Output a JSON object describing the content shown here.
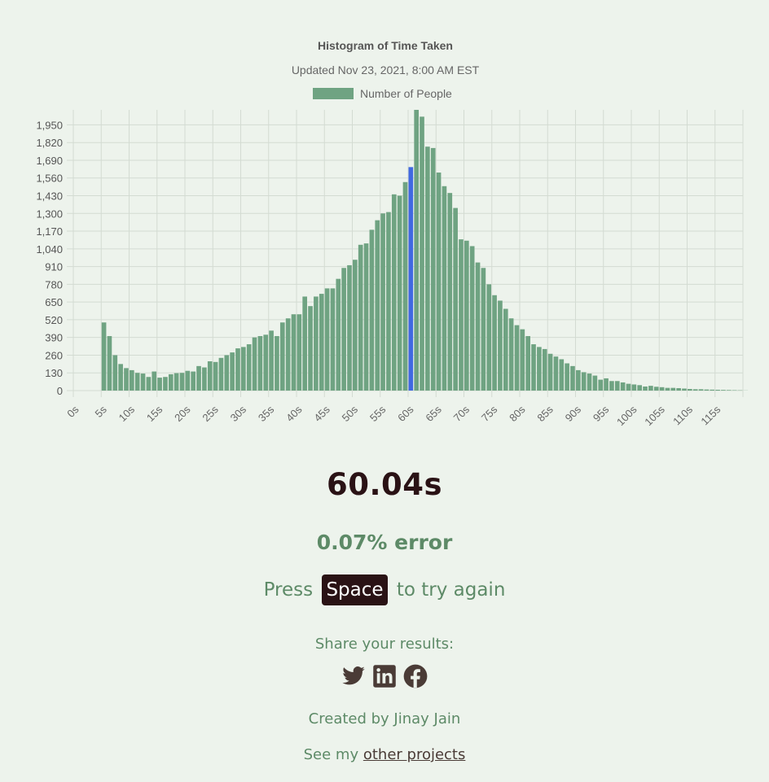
{
  "chart_data": {
    "type": "bar",
    "title": "Histogram of Time Taken",
    "subtitle": "Updated Nov 23, 2021, 8:00 AM EST",
    "legend": "Number of People",
    "legend_position": "top-center",
    "bin_width_s": 1,
    "x_start_s": 0,
    "x_tick_every": 5,
    "x_tick_labels": [
      "0s",
      "5s",
      "10s",
      "15s",
      "20s",
      "25s",
      "30s",
      "35s",
      "40s",
      "45s",
      "50s",
      "55s",
      "60s",
      "65s",
      "70s",
      "75s",
      "80s",
      "85s",
      "90s",
      "95s",
      "100s",
      "105s",
      "110s",
      "115s"
    ],
    "y_ticks": [
      0,
      130,
      260,
      390,
      520,
      650,
      780,
      910,
      1040,
      1170,
      1300,
      1430,
      1560,
      1690,
      1820,
      1950
    ],
    "y_tick_labels": [
      "0",
      "130",
      "260",
      "390",
      "520",
      "650",
      "780",
      "910",
      "1,040",
      "1,170",
      "1,300",
      "1,430",
      "1,560",
      "1,690",
      "1,820",
      "1,950"
    ],
    "ylim": [
      0,
      2060
    ],
    "highlight_bin": 60,
    "bar_color": "#6fa382",
    "highlight_color": "#4169e1",
    "values": [
      0,
      0,
      0,
      0,
      0,
      500,
      400,
      260,
      195,
      165,
      150,
      130,
      125,
      100,
      140,
      95,
      100,
      120,
      128,
      130,
      145,
      140,
      180,
      170,
      215,
      210,
      240,
      260,
      280,
      310,
      320,
      340,
      390,
      400,
      410,
      440,
      400,
      500,
      530,
      560,
      560,
      690,
      620,
      690,
      710,
      750,
      750,
      820,
      900,
      920,
      960,
      1070,
      1080,
      1180,
      1250,
      1300,
      1310,
      1440,
      1430,
      1530,
      1640,
      2060,
      2010,
      1790,
      1780,
      1600,
      1500,
      1450,
      1340,
      1110,
      1100,
      1060,
      940,
      900,
      780,
      700,
      660,
      600,
      530,
      480,
      450,
      400,
      340,
      320,
      305,
      270,
      250,
      230,
      200,
      180,
      150,
      135,
      125,
      110,
      80,
      90,
      70,
      70,
      60,
      50,
      45,
      40,
      30,
      35,
      28,
      25,
      20,
      20,
      18,
      15,
      12,
      10,
      10,
      8,
      7,
      6,
      5,
      4,
      3,
      2,
      1
    ]
  },
  "result": {
    "time": "60.04s",
    "error": "0.07% error",
    "press": "Press",
    "key": "Space",
    "try_again": "to try again"
  },
  "share": {
    "label": "Share your results:",
    "icons": [
      "twitter-icon",
      "linkedin-icon",
      "facebook-icon"
    ]
  },
  "footer": {
    "credit": "Created by Jinay Jain",
    "see_my": "See my",
    "link_text": "other projects"
  },
  "colors": {
    "background": "#edf3ec",
    "accent": "#5d8a67",
    "dark": "#2a1215",
    "icon": "#4a3b36"
  }
}
